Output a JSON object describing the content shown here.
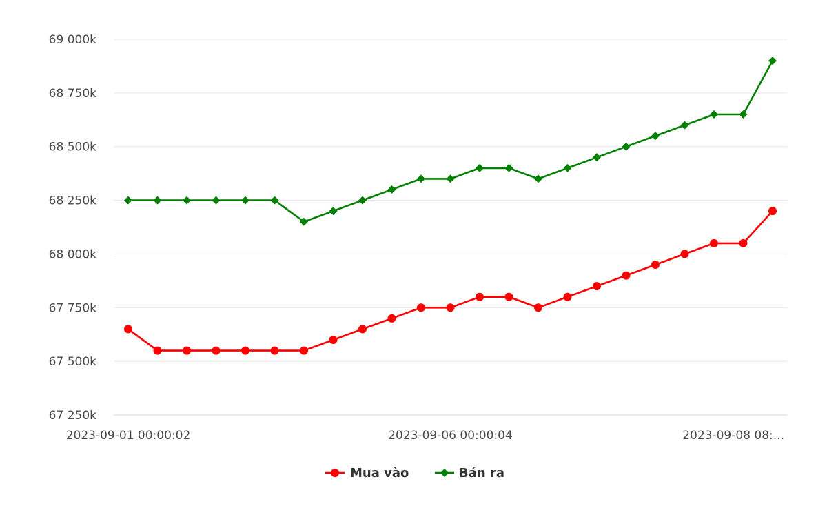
{
  "chart_data": {
    "type": "line",
    "title": "",
    "xlabel": "",
    "ylabel": "",
    "grid": "horizontal",
    "legend_position": "bottom-center",
    "ylim": [
      67250,
      69000
    ],
    "yticks": [
      67250,
      67500,
      67750,
      68000,
      68250,
      68500,
      68750,
      69000
    ],
    "ytick_labels": [
      "67 250k",
      "67 500k",
      "67 750k",
      "68 000k",
      "68 250k",
      "68 500k",
      "68 750k",
      "69 000k"
    ],
    "xtick_labels": [
      {
        "index": 0,
        "label": "2023-09-01 00:00:02"
      },
      {
        "index": 11,
        "label": "2023-09-06 00:00:04"
      },
      {
        "index": 22,
        "label": "2023-09-08 08:..."
      }
    ],
    "point_count": 23,
    "series": [
      {
        "name": "Mua vào",
        "color": "#ff0000",
        "marker": "circle",
        "values": [
          67650,
          67550,
          67550,
          67550,
          67550,
          67550,
          67550,
          67600,
          67650,
          67700,
          67750,
          67750,
          67800,
          67800,
          67750,
          67800,
          67850,
          67900,
          67950,
          68000,
          68050,
          68050,
          68200
        ]
      },
      {
        "name": "Bán ra",
        "color": "#008000",
        "marker": "diamond",
        "values": [
          68250,
          68250,
          68250,
          68250,
          68250,
          68250,
          68150,
          68200,
          68250,
          68300,
          68350,
          68350,
          68400,
          68400,
          68350,
          68400,
          68450,
          68500,
          68550,
          68600,
          68650,
          68650,
          68900
        ]
      }
    ]
  },
  "colors": {
    "grid": "#e6e6e6",
    "axis_line": "#ccd6eb",
    "tick_text": "#4a4a4a"
  }
}
